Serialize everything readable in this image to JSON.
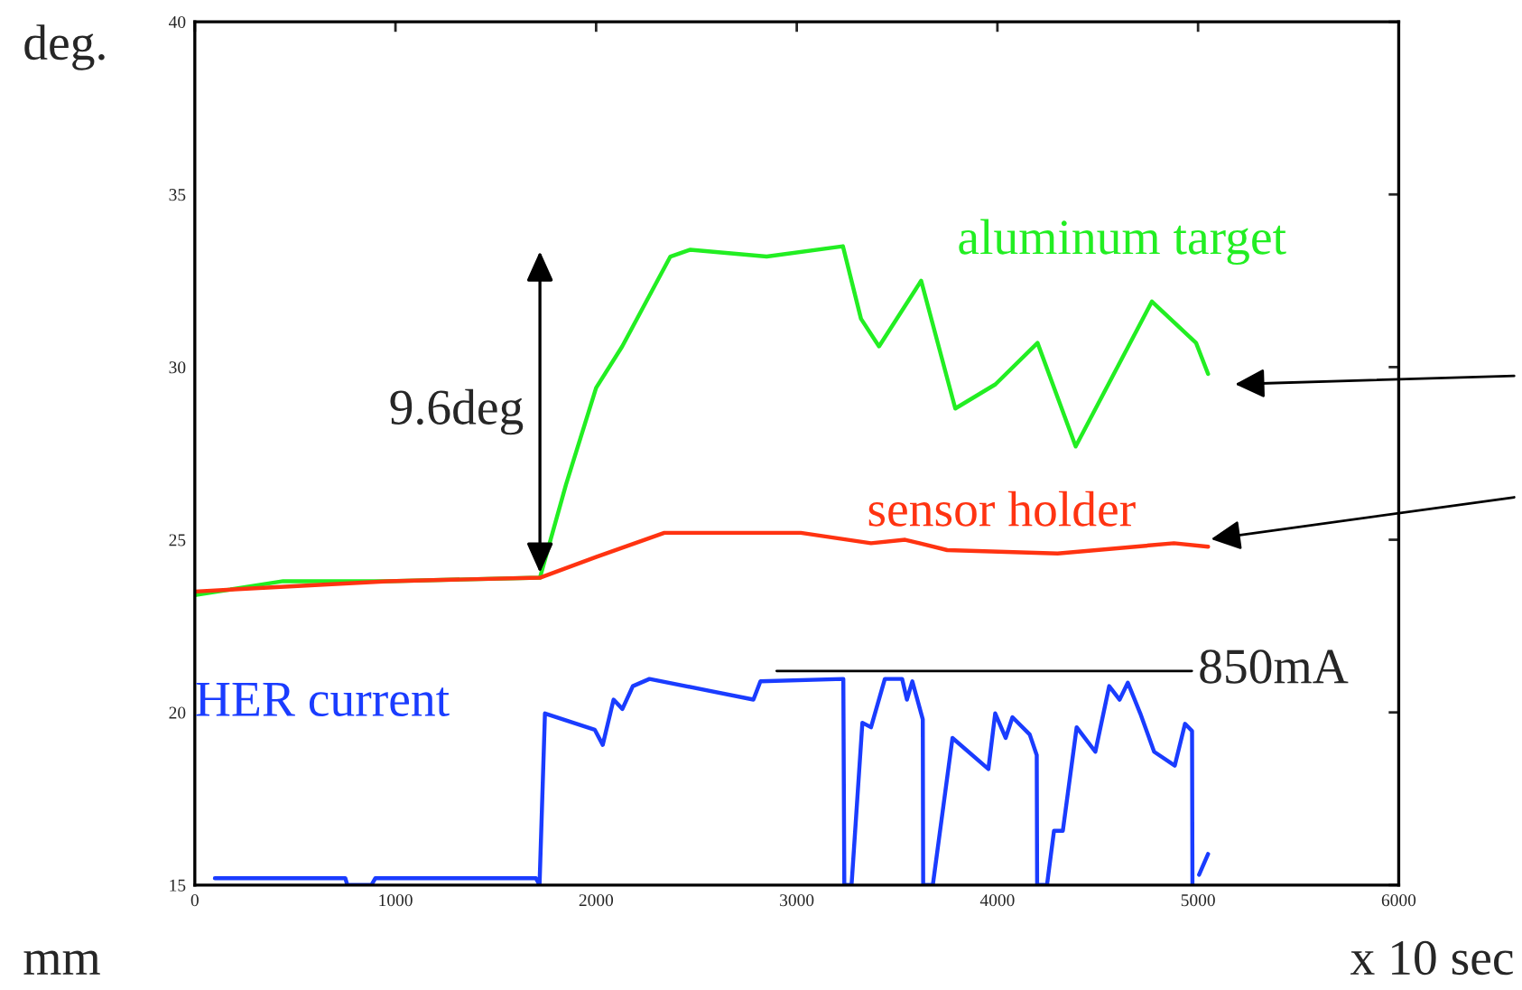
{
  "chart_data": {
    "type": "line",
    "xlabel": "x 10 sec",
    "ylabel": "deg.",
    "xlim": [
      0,
      6000
    ],
    "ylim": [
      15,
      40
    ],
    "xticks": [
      0,
      1000,
      2000,
      3000,
      4000,
      5000,
      6000
    ],
    "yticks": [
      15,
      20,
      25,
      30,
      35,
      40
    ],
    "grid": false,
    "legend": false,
    "marker": "none",
    "line_style": "solid",
    "series": [
      {
        "name": "aluminum target",
        "color": "#22ee22",
        "x": [
          0,
          440,
          960,
          1720,
          1850,
          2000,
          2130,
          2370,
          2470,
          2850,
          3230,
          3320,
          3410,
          3620,
          3790,
          3990,
          4200,
          4390,
          4770,
          4990,
          5050
        ],
        "values": [
          23.4,
          23.8,
          23.8,
          23.9,
          26.6,
          29.4,
          30.6,
          33.2,
          33.4,
          33.2,
          33.5,
          31.4,
          30.6,
          32.5,
          28.8,
          29.5,
          30.7,
          27.7,
          31.9,
          30.7,
          29.8
        ]
      },
      {
        "name": "sensor holder",
        "color": "#ff3311",
        "x": [
          0,
          960,
          1720,
          2000,
          2340,
          3020,
          3370,
          3540,
          3750,
          4300,
          4880,
          5050
        ],
        "values": [
          23.5,
          23.8,
          23.9,
          24.5,
          25.2,
          25.2,
          24.9,
          25.0,
          24.7,
          24.6,
          24.9,
          24.8
        ]
      },
      {
        "name": "HER current",
        "color": "#1a3cff",
        "x": [
          100,
          750,
          760,
          880,
          900,
          1700,
          1718,
          1745,
          1993,
          2033,
          2087,
          2131,
          2183,
          2266,
          2784,
          2819,
          3232,
          3237,
          3273,
          3327,
          3370,
          3439,
          3525,
          3549,
          3576,
          3628,
          3630,
          3678,
          3776,
          3955,
          3989,
          4041,
          4075,
          4161,
          4196,
          4198,
          4247,
          4282,
          4326,
          4395,
          4488,
          4557,
          4609,
          4650,
          4712,
          4781,
          4884,
          4935,
          4970,
          4972,
          4990,
          5005,
          5050
        ],
        "values": [
          15.2,
          15.2,
          15.0,
          15.0,
          15.2,
          15.2,
          15.0,
          19.97,
          19.5,
          19.06,
          20.37,
          20.1,
          20.76,
          20.97,
          20.37,
          20.9,
          20.97,
          15.0,
          15.0,
          19.7,
          19.57,
          20.97,
          20.97,
          20.37,
          20.9,
          19.8,
          15.0,
          15.0,
          19.26,
          18.36,
          19.97,
          19.26,
          19.86,
          19.36,
          18.76,
          15.0,
          15.0,
          16.57,
          16.57,
          19.57,
          18.86,
          20.76,
          20.37,
          20.86,
          19.97,
          18.86,
          18.46,
          19.67,
          19.46,
          15.0,
          null,
          15.3,
          15.9
        ]
      }
    ],
    "annotations": [
      "9.6deg",
      {
        "text": "850mA",
        "x": 2900,
        "y": 21.2
      },
      "mm"
    ]
  }
}
